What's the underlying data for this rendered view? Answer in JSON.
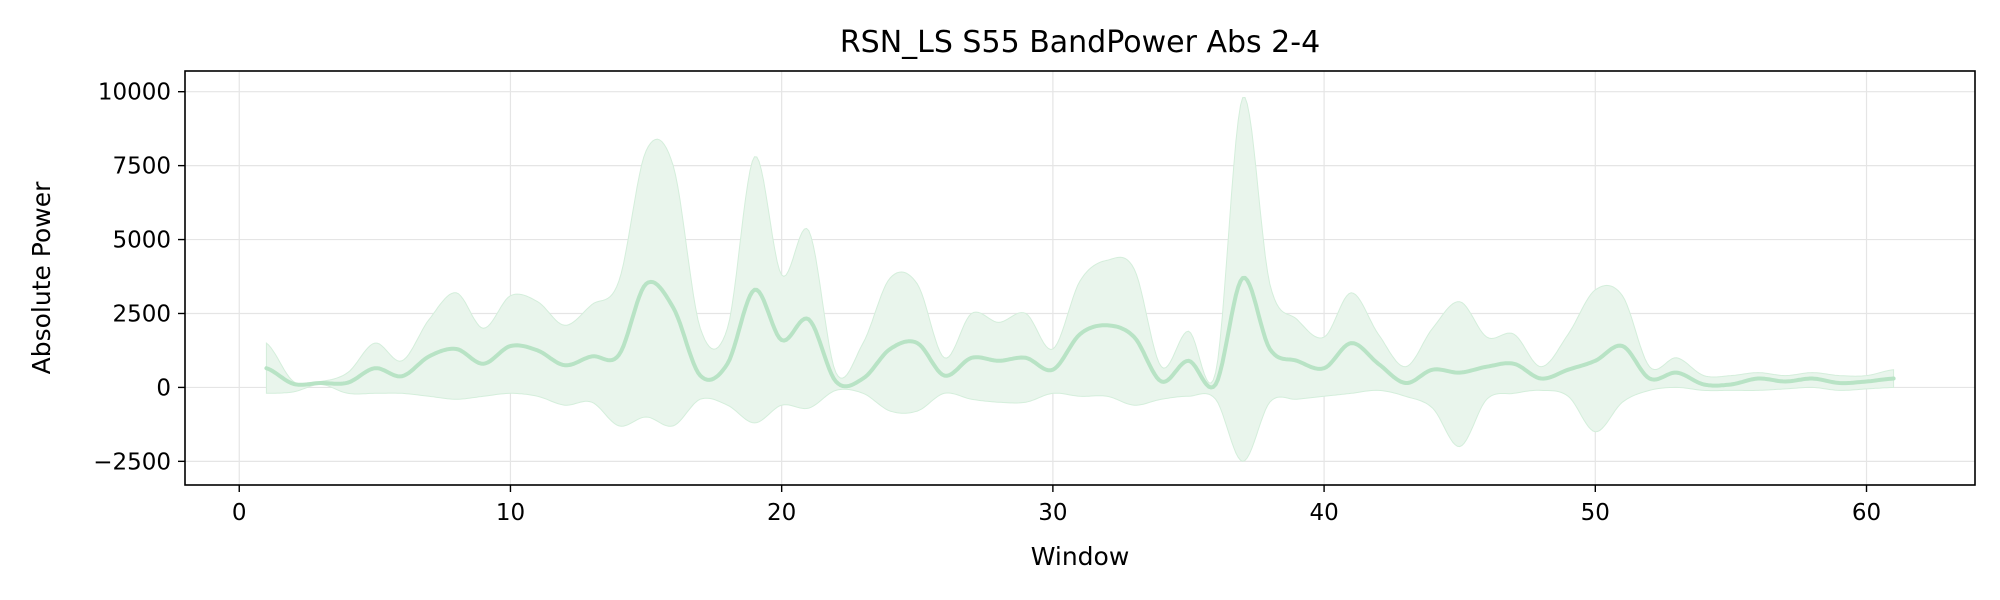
{
  "chart_data": {
    "type": "line",
    "title": "RSN_LS S55 BandPower Abs 2-4",
    "xlabel": "Window",
    "ylabel": "Absolute Power",
    "xlim": [
      -2,
      64
    ],
    "ylim": [
      -3300,
      10700
    ],
    "xticks": [
      0,
      10,
      20,
      30,
      40,
      50,
      60
    ],
    "yticks": [
      -2500,
      0,
      2500,
      5000,
      7500,
      10000
    ],
    "ytick_labels": [
      "−2500",
      "0",
      "2500",
      "5000",
      "7500",
      "10000"
    ],
    "grid": true,
    "legend": "none",
    "colors": {
      "line": "#b8e3c5",
      "band": "#e9f5ec",
      "band_edge": "#d4eedb",
      "grid": "#e5e5e5"
    },
    "series": [
      {
        "x": [
          1,
          2,
          3,
          4,
          5,
          6,
          7,
          8,
          9,
          10,
          11,
          12,
          13,
          14,
          15,
          16,
          17,
          18,
          19,
          20,
          21,
          22,
          23,
          24,
          25,
          26,
          27,
          28,
          29,
          30,
          31,
          32,
          33,
          34,
          35,
          36,
          37,
          38,
          39,
          40,
          41,
          42,
          43,
          44,
          45,
          46,
          47,
          48,
          49,
          50,
          51,
          52,
          53,
          54,
          55,
          56,
          57,
          58,
          59,
          60,
          61
        ],
        "mean": [
          650,
          120,
          150,
          160,
          650,
          380,
          1050,
          1300,
          800,
          1400,
          1250,
          750,
          1050,
          1100,
          3500,
          2700,
          400,
          800,
          3300,
          1600,
          2300,
          200,
          300,
          1300,
          1500,
          400,
          1000,
          900,
          1000,
          600,
          1800,
          2100,
          1700,
          200,
          900,
          100,
          3700,
          1300,
          900,
          650,
          1500,
          800,
          150,
          600,
          500,
          700,
          800,
          300,
          600,
          900,
          1400,
          300,
          500,
          100,
          100,
          300,
          200,
          300,
          150,
          200,
          300
        ],
        "upper": [
          1500,
          200,
          200,
          500,
          1500,
          900,
          2300,
          3200,
          2000,
          3100,
          2900,
          2100,
          2800,
          3600,
          8000,
          7500,
          2000,
          2000,
          7800,
          3800,
          5300,
          500,
          1500,
          3700,
          3500,
          1000,
          2500,
          2200,
          2500,
          1300,
          3600,
          4300,
          4000,
          700,
          1900,
          500,
          9800,
          3500,
          2300,
          1700,
          3200,
          1800,
          700,
          2000,
          2900,
          1700,
          1800,
          700,
          1800,
          3300,
          3100,
          700,
          1000,
          400,
          400,
          500,
          400,
          500,
          400,
          400,
          600
        ],
        "lower": [
          -200,
          -150,
          100,
          -200,
          -200,
          -200,
          -300,
          -400,
          -300,
          -200,
          -300,
          -600,
          -500,
          -1300,
          -1000,
          -1300,
          -400,
          -600,
          -1200,
          -600,
          -700,
          -100,
          -200,
          -800,
          -800,
          -200,
          -400,
          -500,
          -500,
          -200,
          -300,
          -300,
          -600,
          -400,
          -300,
          -400,
          -2500,
          -500,
          -400,
          -300,
          -200,
          -100,
          -300,
          -700,
          -2000,
          -400,
          -200,
          -100,
          -300,
          -1500,
          -500,
          -100,
          0,
          -100,
          -100,
          -100,
          -50,
          0,
          -100,
          -50,
          0
        ]
      }
    ]
  }
}
